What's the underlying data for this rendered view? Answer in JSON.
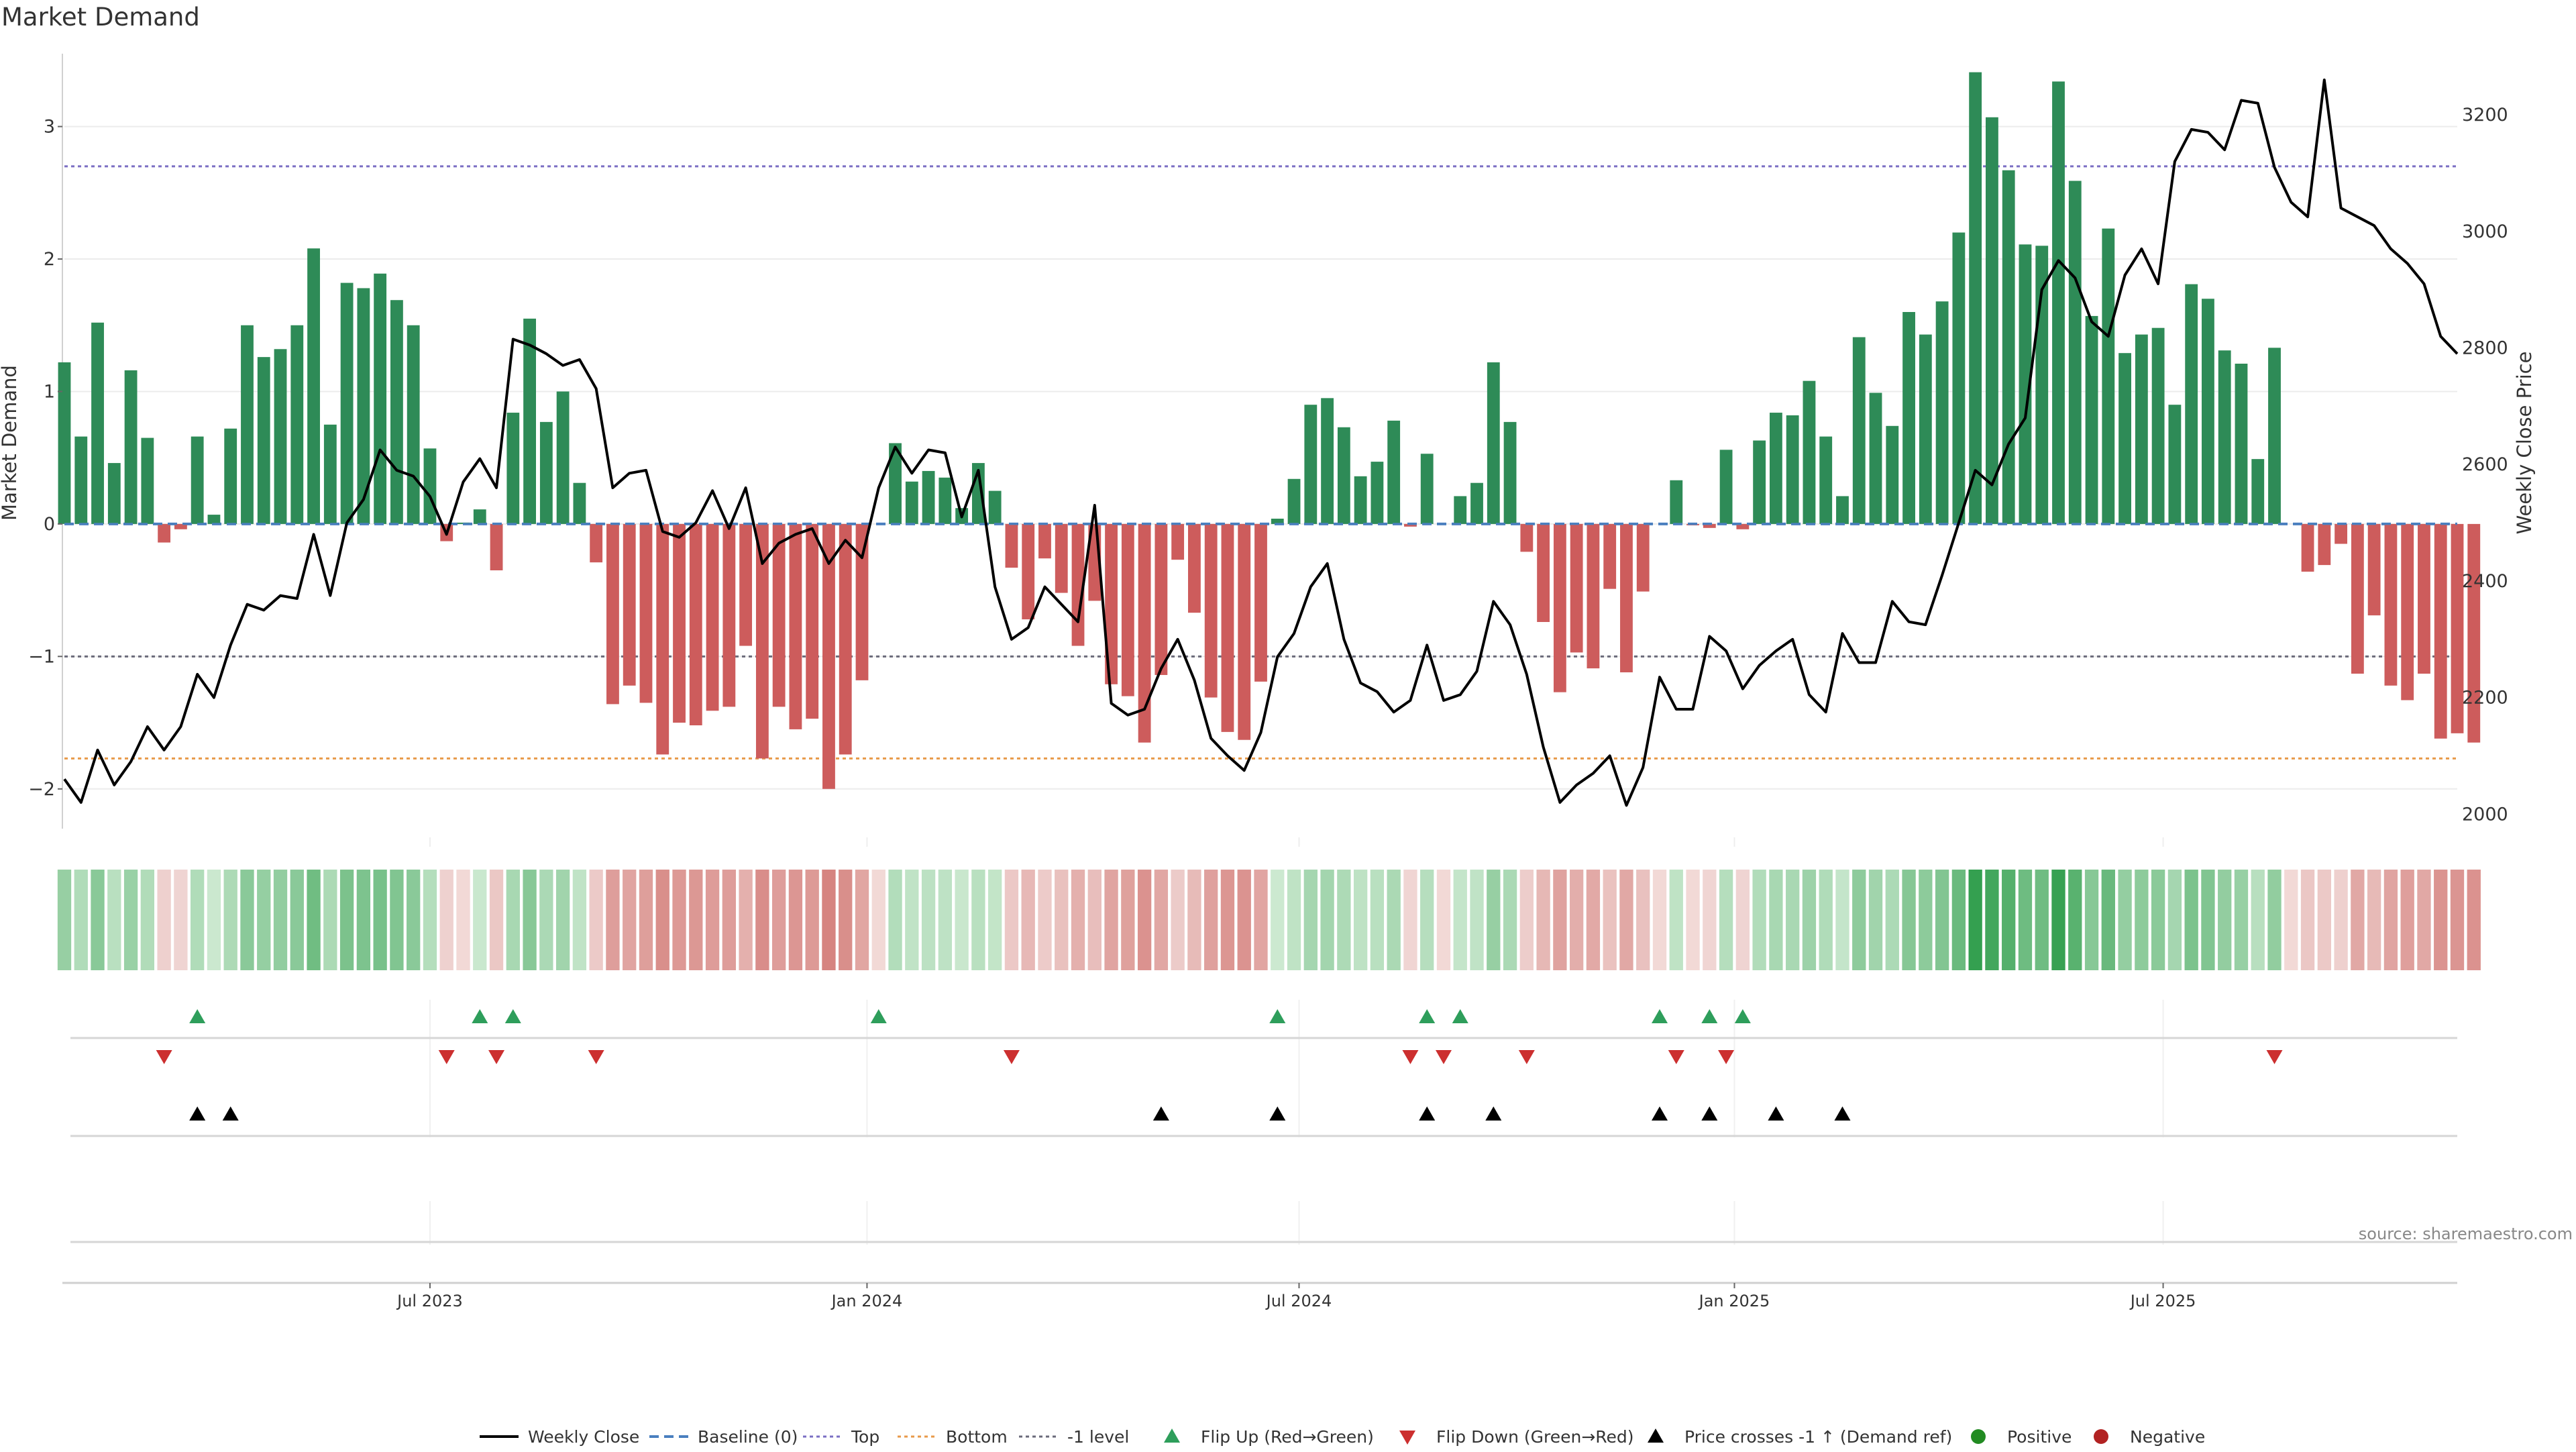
{
  "chart_data": {
    "type": "bar",
    "title": "Market Demand",
    "ylabel_left": "Market Demand",
    "ylabel_right": "Weekly Close Price",
    "source": "source: sharemaestro.com",
    "y_left": {
      "lim": [
        -2.3,
        3.55
      ],
      "ticks": [
        -2,
        -1,
        0,
        1,
        2,
        3
      ],
      "tick_labels": [
        "−2",
        "−1",
        "0",
        "1",
        "2",
        "3"
      ]
    },
    "y_right": {
      "lim": [
        1975,
        3305
      ],
      "ticks": [
        2000,
        2200,
        2400,
        2600,
        2800,
        3000,
        3200
      ],
      "tick_labels": [
        "2000",
        "2200",
        "2400",
        "2600",
        "2800",
        "3000",
        "3200"
      ]
    },
    "x_axis": {
      "n_weeks": 145,
      "ticks": [
        {
          "index": 22,
          "label": "Jul 2023"
        },
        {
          "index": 48.3,
          "label": "Jan 2024"
        },
        {
          "index": 74.3,
          "label": "Jul 2024"
        },
        {
          "index": 100.5,
          "label": "Jan 2025"
        },
        {
          "index": 126.3,
          "label": "Jul 2025"
        }
      ]
    },
    "reference_lines": [
      {
        "name": "Baseline (0)",
        "value": 0,
        "color": "#4a7fbf",
        "style": "dashed"
      },
      {
        "name": "Top",
        "value": 2.7,
        "color": "#7b6fc4",
        "style": "dotted"
      },
      {
        "name": "Bottom",
        "value": -1.77,
        "color": "#e89a4a",
        "style": "dotted"
      },
      {
        "name": "-1 level",
        "value": -1.0,
        "color": "#6a6a7a",
        "style": "dotted"
      }
    ],
    "series": [
      {
        "name": "Market Demand",
        "kind": "bar",
        "positive_color": "#2e8b57",
        "negative_color": "#cd5c5c",
        "values": [
          1.22,
          0.66,
          1.52,
          0.46,
          1.16,
          0.65,
          -0.14,
          -0.04,
          0.66,
          0.07,
          0.72,
          1.5,
          1.26,
          1.32,
          1.5,
          2.08,
          0.75,
          1.82,
          1.78,
          1.89,
          1.69,
          1.5,
          0.57,
          -0.13,
          0.01,
          0.11,
          -0.35,
          0.84,
          1.55,
          0.77,
          1.0,
          0.31,
          -0.29,
          -1.36,
          -1.22,
          -1.35,
          -1.74,
          -1.5,
          -1.52,
          -1.41,
          -1.38,
          -0.92,
          -1.77,
          -1.38,
          -1.55,
          -1.47,
          -2.0,
          -1.74,
          -1.18,
          0.0,
          0.61,
          0.32,
          0.4,
          0.35,
          0.12,
          0.46,
          0.25,
          -0.33,
          -0.72,
          -0.26,
          -0.52,
          -0.92,
          -0.58,
          -1.21,
          -1.3,
          -1.65,
          -1.14,
          -0.27,
          -0.67,
          -1.31,
          -1.57,
          -1.63,
          -1.19,
          0.04,
          0.34,
          0.9,
          0.95,
          0.73,
          0.36,
          0.47,
          0.78,
          -0.02,
          0.53,
          0.0,
          0.21,
          0.31,
          1.22,
          0.77,
          -0.21,
          -0.74,
          -1.27,
          -0.97,
          -1.09,
          -0.49,
          -1.12,
          -0.51,
          0.0,
          0.33,
          -0.01,
          -0.03,
          0.56,
          -0.04,
          0.63,
          0.84,
          0.82,
          1.08,
          0.66,
          0.21,
          1.41,
          0.99,
          0.74,
          1.6,
          1.43,
          1.68,
          2.2,
          3.41,
          3.07,
          2.67,
          2.11,
          2.1,
          3.34,
          2.59,
          1.57,
          2.23,
          1.29,
          1.43,
          1.48,
          0.9,
          1.81,
          1.7,
          1.31,
          1.21,
          0.49,
          1.33,
          0.0,
          -0.36,
          -0.31,
          -0.15,
          -1.13,
          -0.69,
          -1.22,
          -1.33,
          -1.13,
          -1.62,
          -1.58,
          -1.65
        ]
      },
      {
        "name": "Weekly Close",
        "kind": "line",
        "axis": "right",
        "color": "#000000",
        "values": [
          2060,
          2020,
          2110,
          2050,
          2090,
          2150,
          2110,
          2150,
          2240,
          2200,
          2290,
          2360,
          2350,
          2375,
          2370,
          2480,
          2375,
          2500,
          2540,
          2625,
          2590,
          2580,
          2545,
          2480,
          2570,
          2610,
          2560,
          2815,
          2805,
          2790,
          2770,
          2780,
          2730,
          2560,
          2585,
          2590,
          2485,
          2475,
          2500,
          2555,
          2490,
          2560,
          2430,
          2465,
          2480,
          2490,
          2430,
          2470,
          2440,
          2560,
          2630,
          2585,
          2625,
          2620,
          2510,
          2590,
          2390,
          2300,
          2320,
          2390,
          2360,
          2330,
          2530,
          2190,
          2170,
          2180,
          2250,
          2300,
          2230,
          2130,
          2100,
          2075,
          2140,
          2270,
          2310,
          2390,
          2430,
          2300,
          2225,
          2210,
          2175,
          2195,
          2290,
          2195,
          2205,
          2245,
          2365,
          2325,
          2240,
          2115,
          2020,
          2050,
          2070,
          2100,
          2015,
          2080,
          2235,
          2180,
          2180,
          2305,
          2280,
          2215,
          2255,
          2280,
          2300,
          2205,
          2175,
          2310,
          2260,
          2260,
          2365,
          2330,
          2325,
          2410,
          2500,
          2590,
          2565,
          2635,
          2680,
          2900,
          2950,
          2920,
          2845,
          2820,
          2925,
          2970,
          2910,
          3120,
          3175,
          3170,
          3140,
          3225,
          3220,
          3110,
          3050,
          3025,
          3260,
          3040,
          3025,
          3010,
          2970,
          2945,
          2910,
          2820,
          2790
        ]
      }
    ],
    "strip": {
      "name": "Demand heat strip",
      "values": [
        1.22,
        0.66,
        1.52,
        0.46,
        1.16,
        0.65,
        -0.14,
        -0.04,
        0.66,
        0.07,
        0.72,
        1.5,
        1.26,
        1.32,
        1.5,
        2.08,
        0.75,
        1.82,
        1.78,
        1.89,
        1.69,
        1.5,
        0.57,
        -0.13,
        0.01,
        0.11,
        -0.35,
        0.84,
        1.55,
        0.77,
        1.0,
        0.31,
        -0.29,
        -1.36,
        -1.22,
        -1.35,
        -1.74,
        -1.5,
        -1.52,
        -1.41,
        -1.38,
        -0.92,
        -1.77,
        -1.38,
        -1.55,
        -1.47,
        -2.0,
        -1.74,
        -1.18,
        0.0,
        0.61,
        0.32,
        0.4,
        0.35,
        0.12,
        0.46,
        0.25,
        -0.33,
        -0.72,
        -0.26,
        -0.52,
        -0.92,
        -0.58,
        -1.21,
        -1.3,
        -1.65,
        -1.14,
        -0.27,
        -0.67,
        -1.31,
        -1.57,
        -1.63,
        -1.19,
        0.04,
        0.34,
        0.9,
        0.95,
        0.73,
        0.36,
        0.47,
        0.78,
        -0.02,
        0.53,
        0.0,
        0.21,
        0.31,
        1.22,
        0.77,
        -0.21,
        -0.74,
        -1.27,
        -0.97,
        -1.09,
        -0.49,
        -1.12,
        -0.51,
        0.0,
        0.33,
        -0.01,
        -0.03,
        0.56,
        -0.04,
        0.63,
        0.84,
        0.82,
        1.08,
        0.66,
        0.21,
        1.41,
        0.99,
        0.74,
        1.6,
        1.43,
        1.68,
        2.2,
        3.41,
        3.07,
        2.67,
        2.11,
        2.1,
        3.34,
        2.59,
        1.57,
        2.23,
        1.29,
        1.43,
        1.48,
        0.9,
        1.81,
        1.7,
        1.31,
        1.21,
        0.49,
        1.33,
        0.0,
        -0.36,
        -0.31,
        -0.15,
        -1.13,
        -0.69,
        -1.22,
        -1.33,
        -1.13,
        -1.62,
        -1.58,
        -1.65
      ]
    },
    "events": {
      "flip_up": {
        "name": "Flip Up (Red→Green)",
        "color": "#2e9e5b",
        "indices": [
          8,
          25,
          27,
          49,
          73,
          82,
          84,
          96,
          99,
          101
        ]
      },
      "flip_down": {
        "name": "Flip Down (Green→Red)",
        "color": "#cc2f2f",
        "indices": [
          6,
          23,
          26,
          32,
          57,
          81,
          83,
          88,
          97,
          100,
          133
        ]
      },
      "price_cross": {
        "name": "Price crosses -1 ↑ (Demand ref)",
        "color": "#000000",
        "indices": [
          8,
          10,
          66,
          73,
          82,
          86,
          96,
          99,
          103,
          107
        ]
      },
      "positive": {
        "name": "Positive",
        "color": "#228b22",
        "indices": []
      },
      "negative": {
        "name": "Negative",
        "color": "#b22222",
        "indices": []
      }
    },
    "legend": {
      "placement": "bottom-center",
      "entries": [
        {
          "label": "Weekly Close",
          "marker": "line-solid",
          "color": "#000000"
        },
        {
          "label": "Baseline (0)",
          "marker": "line-dashed",
          "color": "#4a7fbf"
        },
        {
          "label": "Top",
          "marker": "line-dotted",
          "color": "#7b6fc4"
        },
        {
          "label": "Bottom",
          "marker": "line-dotted",
          "color": "#e89a4a"
        },
        {
          "label": "-1 level",
          "marker": "line-dotted",
          "color": "#6a6a7a"
        },
        {
          "label": "Flip Up (Red→Green)",
          "marker": "triangle-up",
          "color": "#2e9e5b"
        },
        {
          "label": "Flip Down (Green→Red)",
          "marker": "triangle-down",
          "color": "#cc2f2f"
        },
        {
          "label": "Price crosses -1 ↑ (Demand ref)",
          "marker": "triangle-up",
          "color": "#000000"
        },
        {
          "label": "Positive",
          "marker": "circle",
          "color": "#228b22"
        },
        {
          "label": "Negative",
          "marker": "circle",
          "color": "#b22222"
        }
      ]
    }
  }
}
